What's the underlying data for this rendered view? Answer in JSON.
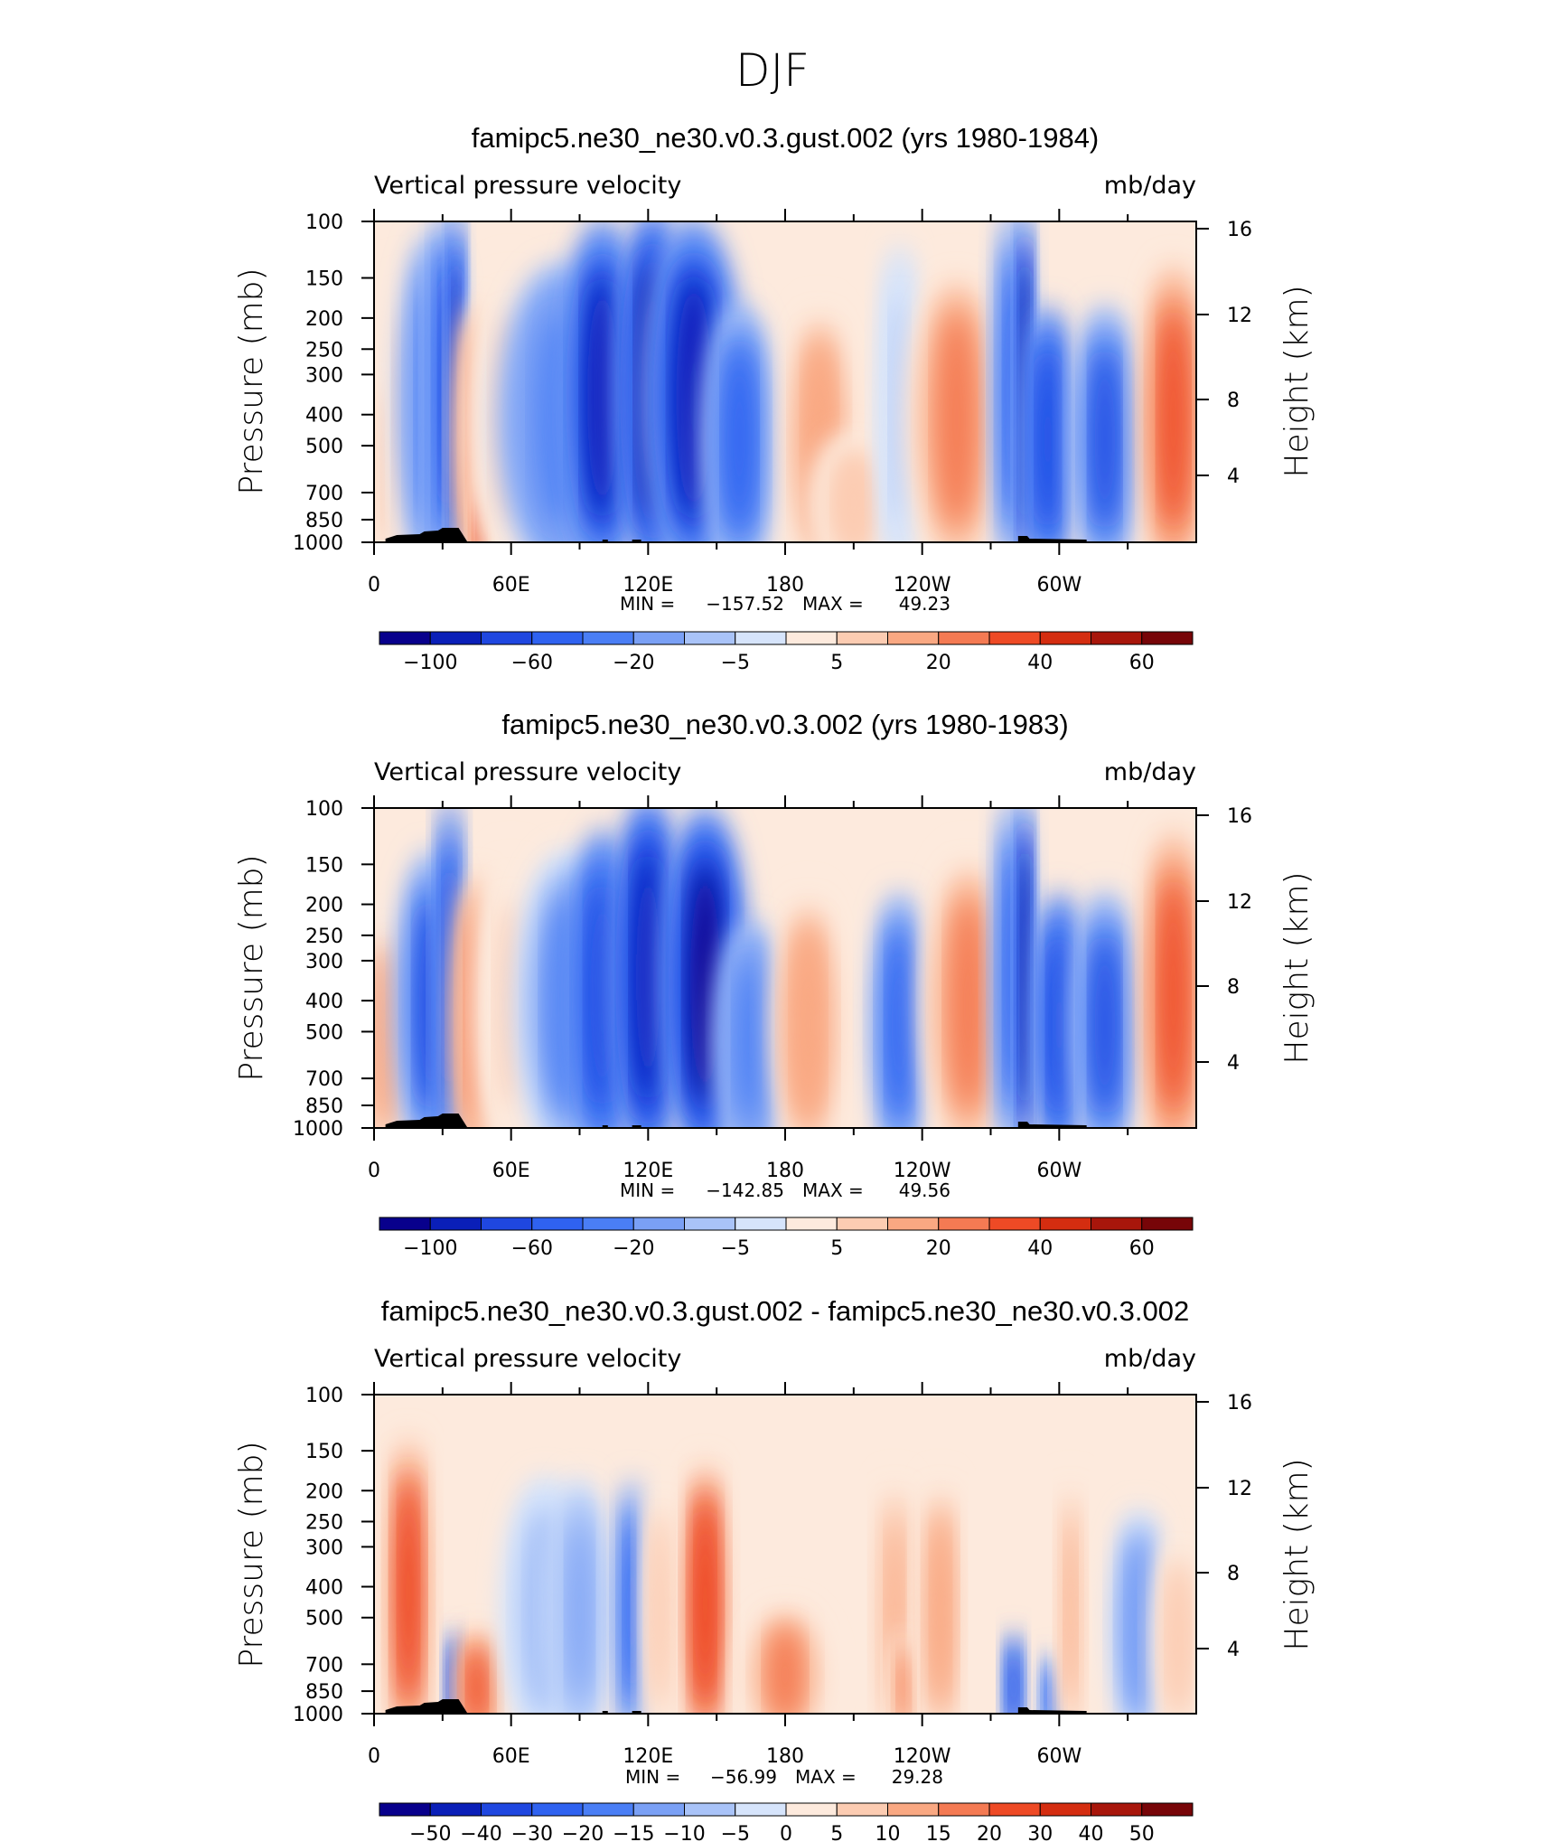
{
  "figure_title": "DJF",
  "colors": {
    "diverging_palette": [
      "#08008c",
      "#0a1fb8",
      "#1f47e0",
      "#2f62f0",
      "#4a7ef5",
      "#7aa0f5",
      "#a9c3f8",
      "#d6e4fb",
      "#fdeadd",
      "#fcccb2",
      "#f9a882",
      "#f47a53",
      "#ee4a25",
      "#d42d10",
      "#a8160b",
      "#770508"
    ],
    "topography": "#000000"
  },
  "chart_data": [
    {
      "type": "heatmap",
      "title": "famipc5.ne30_ne30.v0.3.gust.002 (yrs 1980-1984)",
      "left_label": "Vertical pressure velocity",
      "right_label": "mb/day",
      "ylabel": "Pressure (mb)",
      "y2label": "Height (km)",
      "x_ticks": [
        "0",
        "60E",
        "120E",
        "180",
        "120W",
        "60W"
      ],
      "y_ticks": [
        "100",
        "150",
        "200",
        "250",
        "300",
        "400",
        "500",
        "700",
        "850",
        "1000"
      ],
      "y2_ticks": [
        "16",
        "12",
        "8",
        "4"
      ],
      "xlim": [
        0,
        360
      ],
      "ylim": [
        1000,
        100
      ],
      "y_scale": "log",
      "min_label": "MIN =",
      "min_value": "−157.52",
      "max_label": "MAX =",
      "max_value": "49.23",
      "colorbar_labels": [
        "−100",
        "−60",
        "−20",
        "−5",
        "5",
        "20",
        "40",
        "60"
      ],
      "colorbar_levels": 16,
      "features": [
        {
          "lon": 8,
          "p_top": 300,
          "w": 6,
          "v": 10
        },
        {
          "lon": 12,
          "p_top": 150,
          "w": 5,
          "v": 6
        },
        {
          "lon": 25,
          "p_top": 120,
          "w": 9,
          "v": -25
        },
        {
          "lon": 32,
          "p_top": 100,
          "w": 5,
          "v": -45
        },
        {
          "lon": 36,
          "p_top": 100,
          "w": 2.5,
          "v": -80
        },
        {
          "lon": 45,
          "p_top": 200,
          "w": 6,
          "v": 25
        },
        {
          "lon": 47,
          "p_top": 700,
          "w": 3,
          "v": 45
        },
        {
          "lon": 60,
          "p_top": 150,
          "w": 12,
          "v": 5
        },
        {
          "lon": 82,
          "p_top": 150,
          "w": 18,
          "v": -25
        },
        {
          "lon": 100,
          "p_top": 110,
          "w": 12,
          "v": -60
        },
        {
          "lon": 122,
          "p_top": 100,
          "w": 10,
          "v": -80
        },
        {
          "lon": 140,
          "p_top": 110,
          "w": 14,
          "v": -65
        },
        {
          "lon": 160,
          "p_top": 200,
          "w": 10,
          "v": -30
        },
        {
          "lon": 195,
          "p_top": 200,
          "w": 10,
          "v": 18
        },
        {
          "lon": 210,
          "p_top": 500,
          "w": 12,
          "v": 8
        },
        {
          "lon": 230,
          "p_top": 130,
          "w": 6,
          "v": -6
        },
        {
          "lon": 255,
          "p_top": 150,
          "w": 14,
          "v": 22
        },
        {
          "lon": 280,
          "p_top": 100,
          "w": 6,
          "v": -35
        },
        {
          "lon": 285,
          "p_top": 100,
          "w": 2.5,
          "v": -90
        },
        {
          "lon": 295,
          "p_top": 200,
          "w": 7,
          "v": -55
        },
        {
          "lon": 320,
          "p_top": 200,
          "w": 9,
          "v": -40
        },
        {
          "lon": 350,
          "p_top": 150,
          "w": 9,
          "v": 32
        }
      ]
    },
    {
      "type": "heatmap",
      "title": "famipc5.ne30_ne30.v0.3.002 (yrs 1980-1983)",
      "left_label": "Vertical pressure velocity",
      "right_label": "mb/day",
      "ylabel": "Pressure (mb)",
      "y2label": "Height (km)",
      "x_ticks": [
        "0",
        "60E",
        "120E",
        "180",
        "120W",
        "60W"
      ],
      "y_ticks": [
        "100",
        "150",
        "200",
        "250",
        "300",
        "400",
        "500",
        "700",
        "850",
        "1000"
      ],
      "y2_ticks": [
        "16",
        "12",
        "8",
        "4"
      ],
      "xlim": [
        0,
        360
      ],
      "ylim": [
        1000,
        100
      ],
      "y_scale": "log",
      "min_label": "MIN =",
      "min_value": "−142.85",
      "max_label": "MAX =",
      "max_value": "49.56",
      "colorbar_labels": [
        "−100",
        "−60",
        "−20",
        "−5",
        "5",
        "20",
        "40",
        "60"
      ],
      "colorbar_levels": 16,
      "features": [
        {
          "lon": 5,
          "p_top": 250,
          "w": 6,
          "v": 18
        },
        {
          "lon": 25,
          "p_top": 150,
          "w": 10,
          "v": -40
        },
        {
          "lon": 33,
          "p_top": 100,
          "w": 4,
          "v": -55
        },
        {
          "lon": 45,
          "p_top": 180,
          "w": 7,
          "v": 25
        },
        {
          "lon": 60,
          "p_top": 150,
          "w": 10,
          "v": 5
        },
        {
          "lon": 85,
          "p_top": 150,
          "w": 15,
          "v": -20
        },
        {
          "lon": 100,
          "p_top": 130,
          "w": 10,
          "v": -55
        },
        {
          "lon": 120,
          "p_top": 100,
          "w": 10,
          "v": -70
        },
        {
          "lon": 145,
          "p_top": 110,
          "w": 12,
          "v": -85
        },
        {
          "lon": 165,
          "p_top": 250,
          "w": 10,
          "v": -25
        },
        {
          "lon": 190,
          "p_top": 200,
          "w": 10,
          "v": 15
        },
        {
          "lon": 230,
          "p_top": 200,
          "w": 8,
          "v": -30
        },
        {
          "lon": 260,
          "p_top": 150,
          "w": 13,
          "v": 22
        },
        {
          "lon": 280,
          "p_top": 100,
          "w": 6,
          "v": -35
        },
        {
          "lon": 285,
          "p_top": 100,
          "w": 2.5,
          "v": -90
        },
        {
          "lon": 300,
          "p_top": 200,
          "w": 7,
          "v": -55
        },
        {
          "lon": 320,
          "p_top": 200,
          "w": 9,
          "v": -40
        },
        {
          "lon": 350,
          "p_top": 130,
          "w": 9,
          "v": 38
        }
      ]
    },
    {
      "type": "heatmap",
      "title": "famipc5.ne30_ne30.v0.3.gust.002 - famipc5.ne30_ne30.v0.3.002",
      "left_label": "Vertical pressure velocity",
      "right_label": "mb/day",
      "ylabel": "Pressure (mb)",
      "y2label": "Height (km)",
      "x_ticks": [
        "0",
        "60E",
        "120E",
        "180",
        "120W",
        "60W"
      ],
      "y_ticks": [
        "100",
        "150",
        "200",
        "250",
        "300",
        "400",
        "500",
        "700",
        "850",
        "1000"
      ],
      "y2_ticks": [
        "16",
        "12",
        "8",
        "4"
      ],
      "xlim": [
        0,
        360
      ],
      "ylim": [
        1000,
        100
      ],
      "y_scale": "log",
      "min_label": "MIN =",
      "min_value": "−56.99",
      "max_label": "MAX =",
      "max_value": "29.28",
      "colorbar_labels": [
        "−50",
        "−40",
        "−30",
        "−20",
        "−15",
        "−10",
        "−5",
        "0",
        "5",
        "10",
        "15",
        "20",
        "30",
        "40",
        "50"
      ],
      "colorbar_levels": 16,
      "features": [
        {
          "lon": 15,
          "p_top": 150,
          "w": 6,
          "v": 25
        },
        {
          "lon": 35,
          "p_top": 600,
          "w": 2.5,
          "v": -40
        },
        {
          "lon": 45,
          "p_top": 600,
          "w": 6,
          "v": 20
        },
        {
          "lon": 75,
          "p_top": 200,
          "w": 12,
          "v": -8
        },
        {
          "lon": 90,
          "p_top": 200,
          "w": 8,
          "v": -12
        },
        {
          "lon": 113,
          "p_top": 200,
          "w": 5,
          "v": -22
        },
        {
          "lon": 125,
          "p_top": 200,
          "w": 5,
          "v": 8
        },
        {
          "lon": 145,
          "p_top": 180,
          "w": 6,
          "v": 28
        },
        {
          "lon": 180,
          "p_top": 500,
          "w": 12,
          "v": 15
        },
        {
          "lon": 228,
          "p_top": 200,
          "w": 6,
          "v": 10
        },
        {
          "lon": 232,
          "p_top": 600,
          "w": 4,
          "v": 15
        },
        {
          "lon": 248,
          "p_top": 200,
          "w": 6,
          "v": 14
        },
        {
          "lon": 280,
          "p_top": 600,
          "w": 3,
          "v": -35
        },
        {
          "lon": 296,
          "p_top": 700,
          "w": 3,
          "v": -25
        },
        {
          "lon": 305,
          "p_top": 200,
          "w": 4,
          "v": 12
        },
        {
          "lon": 335,
          "p_top": 250,
          "w": 8,
          "v": -15
        },
        {
          "lon": 352,
          "p_top": 300,
          "w": 7,
          "v": 8
        }
      ]
    }
  ]
}
